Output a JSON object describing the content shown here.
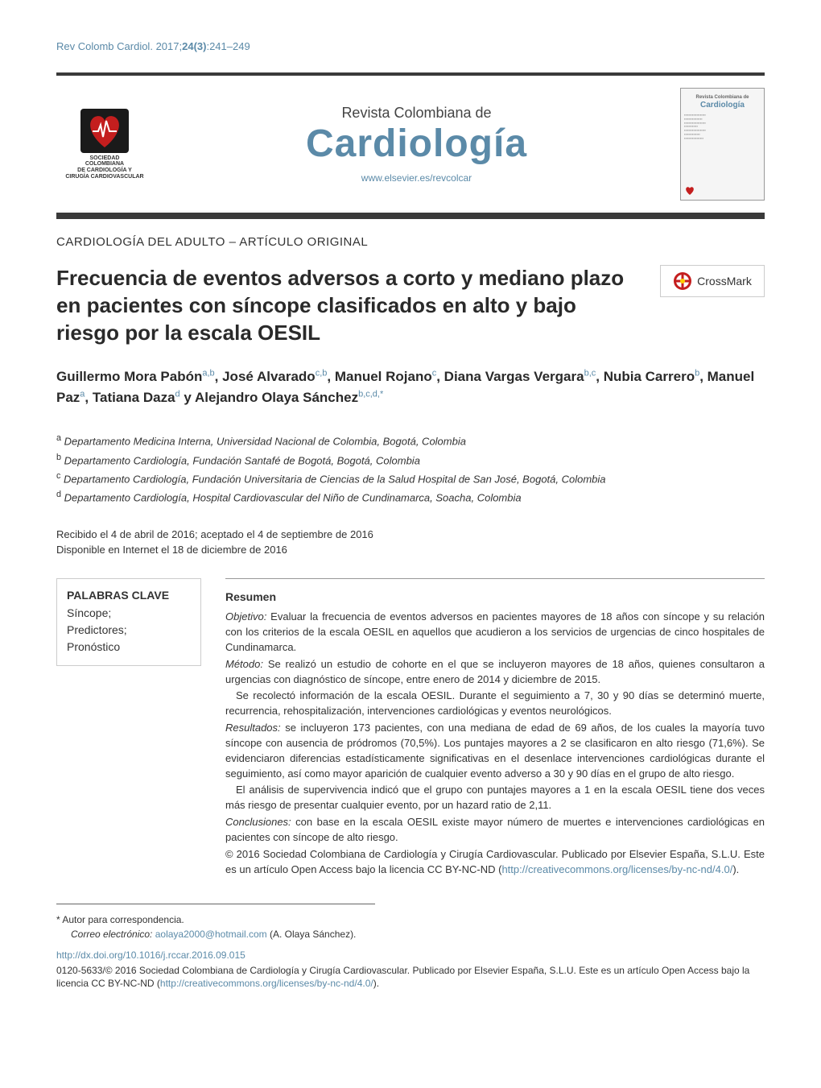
{
  "citation": {
    "journal_abbr": "Rev Colomb Cardiol.",
    "year": "2017;",
    "volume_issue": "24(3)",
    "pages": ":241–249"
  },
  "header": {
    "logo_lines": [
      "SOCIEDAD",
      "COLOMBIANA",
      "DE CARDIOLOGÍA Y",
      "CIRUGÍA CARDIOVASCULAR"
    ],
    "pretitle": "Revista Colombiana de",
    "title": "Cardiología",
    "url": "www.elsevier.es/revcolcar",
    "cover_title": "Cardiología"
  },
  "section_label": "CARDIOLOGÍA DEL ADULTO – ARTÍCULO ORIGINAL",
  "article_title": "Frecuencia de eventos adversos a corto y mediano plazo en pacientes con síncope clasificados en alto y bajo riesgo por la escala OESIL",
  "crossmark_label": "CrossMark",
  "authors_html": "Guillermo Mora Pabón<sup>a,b</sup>, José Alvarado<sup>c,b</sup>, Manuel Rojano<sup>c</sup>, Diana Vargas Vergara<sup>b,c</sup>, Nubia Carrero<sup>b</sup>, Manuel Paz<sup>a</sup>, Tatiana Daza<sup>d</sup> y Alejandro Olaya Sánchez<sup>b,c,d,*</sup>",
  "affiliations": [
    {
      "sup": "a",
      "text": "Departamento Medicina Interna, Universidad Nacional de Colombia, Bogotá, Colombia"
    },
    {
      "sup": "b",
      "text": "Departamento Cardiología, Fundación Santafé de Bogotá, Bogotá, Colombia"
    },
    {
      "sup": "c",
      "text": "Departamento Cardiología, Fundación Universitaria de Ciencias de la Salud Hospital de San José, Bogotá, Colombia"
    },
    {
      "sup": "d",
      "text": "Departamento Cardiología, Hospital Cardiovascular del Niño de Cundinamarca, Soacha, Colombia"
    }
  ],
  "dates": {
    "received": "Recibido el 4 de abril de 2016; aceptado el 4 de septiembre de 2016",
    "online": "Disponible en Internet el 18 de diciembre de 2016"
  },
  "keywords": {
    "title": "PALABRAS CLAVE",
    "items": [
      "Síncope;",
      "Predictores;",
      "Pronóstico"
    ]
  },
  "abstract": {
    "heading": "Resumen",
    "objetivo_label": "Objetivo:",
    "objetivo": "Evaluar la frecuencia de eventos adversos en pacientes mayores de 18 años con síncope y su relación con los criterios de la escala OESIL en aquellos que acudieron a los servicios de urgencias de cinco hospitales de Cundinamarca.",
    "metodo_label": "Método:",
    "metodo1": "Se realizó un estudio de cohorte en el que se incluyeron mayores de 18 años, quienes consultaron a urgencias con diagnóstico de síncope, entre enero de 2014 y diciembre de 2015.",
    "metodo2": "Se recolectó información de la escala OESIL. Durante el seguimiento a 7, 30 y 90 días se determinó muerte, recurrencia, rehospitalización, intervenciones cardiológicas y eventos neurológicos.",
    "resultados_label": "Resultados:",
    "resultados1": "se incluyeron 173 pacientes, con una mediana de edad de 69 años, de los cuales la mayoría tuvo síncope con ausencia de pródromos (70,5%). Los puntajes mayores a 2 se clasificaron en alto riesgo (71,6%). Se evidenciaron diferencias estadísticamente significativas en el desenlace intervenciones cardiológicas durante el seguimiento, así como mayor aparición de cualquier evento adverso a 30 y 90 días en el grupo de alto riesgo.",
    "resultados2": "El análisis de supervivencia indicó que el grupo con puntajes mayores a 1 en la escala OESIL tiene dos veces más riesgo de presentar cualquier evento, por un hazard ratio de 2,11.",
    "conclusiones_label": "Conclusiones:",
    "conclusiones": "con base en la escala OESIL existe mayor número de muertes e intervenciones cardiológicas en pacientes con síncope de alto riesgo.",
    "copyright": "© 2016 Sociedad Colombiana de Cardiología y Cirugía Cardiovascular. Publicado por Elsevier España, S.L.U. Este es un artículo Open Access bajo la licencia CC BY-NC-ND (",
    "license_url": "http://creativecommons.org/licenses/by-nc-nd/4.0/",
    "copyright_close": ")."
  },
  "footer": {
    "corr_label": "Autor para correspondencia.",
    "email_label": "Correo electrónico:",
    "email": "aolaya2000@hotmail.com",
    "email_name": "(A. Olaya Sánchez).",
    "doi": "http://dx.doi.org/10.1016/j.rccar.2016.09.015",
    "issn_copy": "0120-5633/© 2016 Sociedad Colombiana de Cardiología y Cirugía Cardiovascular. Publicado por Elsevier España, S.L.U. Este es un artículo Open Access bajo la licencia CC BY-NC-ND (",
    "license_url": "http://creativecommons.org/licenses/by-nc-nd/4.0/",
    "issn_copy_close": ")."
  },
  "colors": {
    "link": "#5b8aa8",
    "text": "#333333",
    "heart_red": "#c41e1e",
    "heart_black": "#1a1a1a"
  }
}
